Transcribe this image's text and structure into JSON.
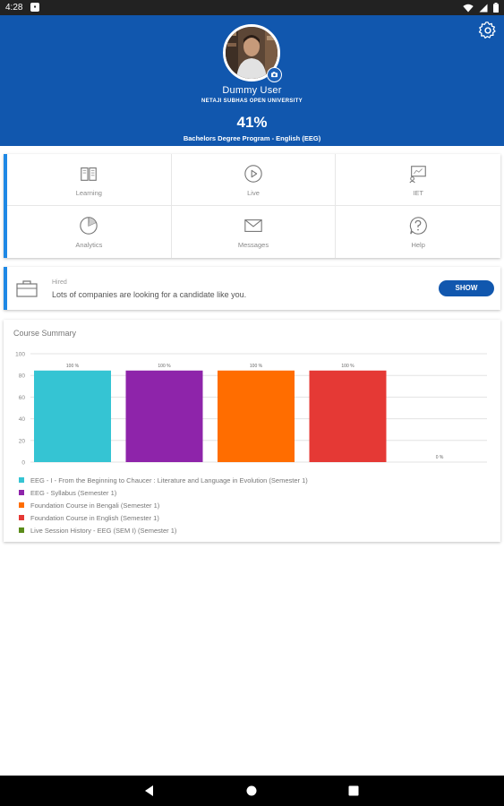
{
  "status_bar": {
    "time": "4:28",
    "notification_icon": "app-notification-icon",
    "icons": [
      "wifi-icon",
      "signal-icon",
      "battery-icon"
    ]
  },
  "header": {
    "background": "#1157ae",
    "user_name": "Dummy User",
    "university": "NETAJI SUBHAS OPEN UNIVERSITY",
    "progress_percent": "41%",
    "program": "Bachelors Degree Program - English (EEG)"
  },
  "tiles": [
    {
      "label": "Learning",
      "icon": "book-icon"
    },
    {
      "label": "Live",
      "icon": "play-icon"
    },
    {
      "label": "IET",
      "icon": "chalkboard-icon"
    },
    {
      "label": "Analytics",
      "icon": "pie-chart-icon"
    },
    {
      "label": "Messages",
      "icon": "envelope-icon"
    },
    {
      "label": "Help",
      "icon": "help-icon"
    }
  ],
  "hired": {
    "title": "Hired",
    "message": "Lots of companies are looking for a candidate like you.",
    "button_label": "SHOW"
  },
  "course_summary": {
    "title": "Course Summary"
  },
  "chart_data": {
    "type": "bar",
    "categories": [
      "EEG - I - From the Beginning to Chaucer : Literature and Language in Evolution (Semester 1)",
      "EEG - Syllabus (Semester 1)",
      "Foundation Course in Bengali (Semester 1)",
      "Foundation Course in English (Semester 1)",
      "Live Session History - EEG (SEM I) (Semester 1)"
    ],
    "values": [
      100,
      100,
      100,
      100,
      0
    ],
    "data_labels": [
      "100 %",
      "100 %",
      "100 %",
      "100 %",
      "0 %"
    ],
    "colors": [
      "#35c4d3",
      "#8e24aa",
      "#ff6d00",
      "#e53935",
      "#5b8c1a"
    ],
    "ylim": [
      0,
      100
    ],
    "yticks": [
      0,
      20,
      40,
      60,
      80,
      100
    ],
    "grid": true,
    "legend_position": "bottom"
  },
  "navigation": {
    "back": "back-icon",
    "home": "home-icon",
    "recents": "recents-icon"
  }
}
